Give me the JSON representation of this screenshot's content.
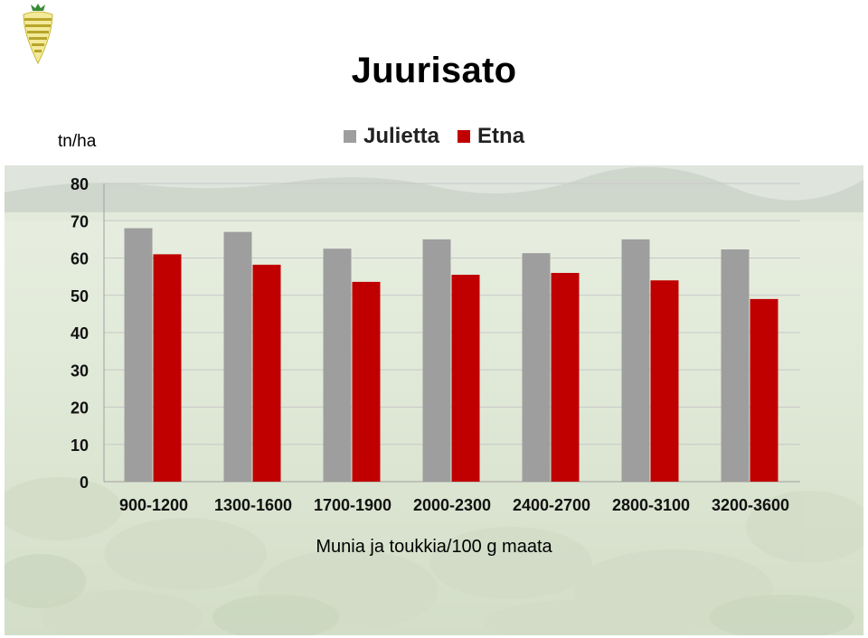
{
  "title": "Juurisato",
  "unit_label": "tn/ha",
  "xlabel": "Munia ja toukkia/100 g maata",
  "legend": [
    {
      "label": "Julietta",
      "color": "#9e9e9e"
    },
    {
      "label": "Etna",
      "color": "#c00000"
    }
  ],
  "chart_data": {
    "type": "bar",
    "title": "Juurisato",
    "ylabel": "tn/ha",
    "xlabel": "Munia ja toukkia/100 g maata",
    "categories": [
      "900-1200",
      "1300-1600",
      "1700-1900",
      "2000-2300",
      "2400-2700",
      "2800-3100",
      "3200-3600"
    ],
    "series": [
      {
        "name": "Julietta",
        "color": "#9e9e9e",
        "values": [
          68,
          67,
          62.5,
          65,
          61.3,
          65,
          62.3
        ]
      },
      {
        "name": "Etna",
        "color": "#c00000",
        "values": [
          61,
          58.2,
          53.6,
          55.5,
          56,
          54,
          49
        ]
      }
    ],
    "ylim": [
      0,
      80
    ],
    "yticks": [
      0,
      10,
      20,
      30,
      40,
      50,
      60,
      70,
      80
    ],
    "grid": true,
    "legend_position": "top"
  }
}
